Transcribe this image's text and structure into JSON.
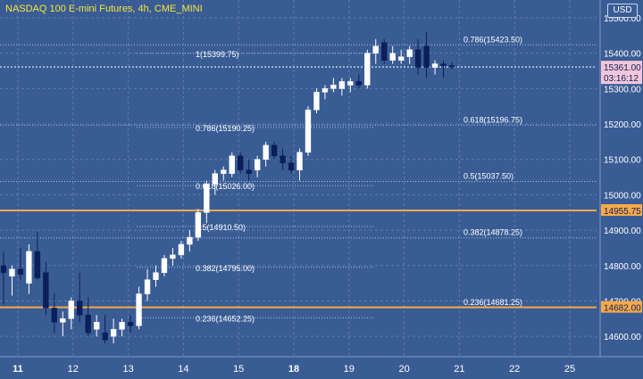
{
  "header": {
    "title": "NASDAQ 100 E-mini Futures, 4h, CME_MINI",
    "currency": "USD"
  },
  "price_labels": {
    "last_price": "15361.00",
    "countdown": "03:16:12",
    "level_upper": "14955.75",
    "level_lower": "14682.00"
  },
  "colors": {
    "background": "#3a5c94",
    "grid": "#5c7cb0",
    "up": "#ffffff",
    "down": "#0b1f5c",
    "orange_line": "#f7a94a",
    "price_label_bg": "#f3c6d9",
    "title": "#f5e63c",
    "text": "#ffffff"
  },
  "chart_data": {
    "type": "candlestick",
    "title": "NASDAQ 100 E-mini Futures, 4h, CME_MINI",
    "y_axis": {
      "range": [
        14550,
        15500
      ],
      "ticks": [
        "14600.00",
        "14700.00",
        "14800.00",
        "14900.00",
        "15000.00",
        "15100.00",
        "15200.00",
        "15300.00",
        "15400.00",
        "15500.00"
      ]
    },
    "x_axis": {
      "labels": [
        "11",
        "12",
        "13",
        "14",
        "15",
        "18",
        "19",
        "20",
        "21",
        "22",
        "25"
      ],
      "bold_labels": [
        "11",
        "18"
      ]
    },
    "candles": [
      {
        "o": 14800,
        "h": 14840,
        "l": 14690,
        "c": 14780
      },
      {
        "o": 14770,
        "h": 14800,
        "l": 14715,
        "c": 14790
      },
      {
        "o": 14790,
        "h": 14850,
        "l": 14760,
        "c": 14775
      },
      {
        "o": 14750,
        "h": 14860,
        "l": 14720,
        "c": 14840
      },
      {
        "o": 14840,
        "h": 14895,
        "l": 14760,
        "c": 14765
      },
      {
        "o": 14780,
        "h": 14810,
        "l": 14660,
        "c": 14680
      },
      {
        "o": 14680,
        "h": 14720,
        "l": 14610,
        "c": 14640
      },
      {
        "o": 14640,
        "h": 14670,
        "l": 14600,
        "c": 14650
      },
      {
        "o": 14650,
        "h": 14710,
        "l": 14620,
        "c": 14700
      },
      {
        "o": 14700,
        "h": 14780,
        "l": 14640,
        "c": 14660
      },
      {
        "o": 14660,
        "h": 14710,
        "l": 14600,
        "c": 14610
      },
      {
        "o": 14620,
        "h": 14660,
        "l": 14600,
        "c": 14640
      },
      {
        "o": 14610,
        "h": 14660,
        "l": 14580,
        "c": 14590
      },
      {
        "o": 14600,
        "h": 14650,
        "l": 14580,
        "c": 14620
      },
      {
        "o": 14620,
        "h": 14650,
        "l": 14600,
        "c": 14640
      },
      {
        "o": 14640,
        "h": 14660,
        "l": 14610,
        "c": 14630
      },
      {
        "o": 14630,
        "h": 14740,
        "l": 14620,
        "c": 14720
      },
      {
        "o": 14720,
        "h": 14790,
        "l": 14700,
        "c": 14760
      },
      {
        "o": 14760,
        "h": 14800,
        "l": 14740,
        "c": 14780
      },
      {
        "o": 14780,
        "h": 14830,
        "l": 14770,
        "c": 14820
      },
      {
        "o": 14820,
        "h": 14850,
        "l": 14800,
        "c": 14830
      },
      {
        "o": 14830,
        "h": 14870,
        "l": 14820,
        "c": 14860
      },
      {
        "o": 14860,
        "h": 14900,
        "l": 14840,
        "c": 14880
      },
      {
        "o": 14880,
        "h": 14960,
        "l": 14870,
        "c": 14950
      },
      {
        "o": 14950,
        "h": 15040,
        "l": 14920,
        "c": 15030
      },
      {
        "o": 15030,
        "h": 15070,
        "l": 15000,
        "c": 15060
      },
      {
        "o": 15060,
        "h": 15080,
        "l": 15040,
        "c": 15070
      },
      {
        "o": 15060,
        "h": 15120,
        "l": 15050,
        "c": 15110
      },
      {
        "o": 15110,
        "h": 15120,
        "l": 15060,
        "c": 15070
      },
      {
        "o": 15070,
        "h": 15100,
        "l": 15040,
        "c": 15060
      },
      {
        "o": 15070,
        "h": 15110,
        "l": 15050,
        "c": 15100
      },
      {
        "o": 15100,
        "h": 15150,
        "l": 15080,
        "c": 15140
      },
      {
        "o": 15140,
        "h": 15150,
        "l": 15100,
        "c": 15110
      },
      {
        "o": 15110,
        "h": 15130,
        "l": 15070,
        "c": 15090
      },
      {
        "o": 15090,
        "h": 15110,
        "l": 15060,
        "c": 15070
      },
      {
        "o": 15070,
        "h": 15130,
        "l": 15040,
        "c": 15120
      },
      {
        "o": 15120,
        "h": 15250,
        "l": 15110,
        "c": 15240
      },
      {
        "o": 15240,
        "h": 15300,
        "l": 15230,
        "c": 15290
      },
      {
        "o": 15290,
        "h": 15310,
        "l": 15270,
        "c": 15300
      },
      {
        "o": 15300,
        "h": 15330,
        "l": 15290,
        "c": 15310
      },
      {
        "o": 15300,
        "h": 15330,
        "l": 15280,
        "c": 15320
      },
      {
        "o": 15310,
        "h": 15330,
        "l": 15290,
        "c": 15320
      },
      {
        "o": 15320,
        "h": 15340,
        "l": 15300,
        "c": 15310
      },
      {
        "o": 15310,
        "h": 15410,
        "l": 15300,
        "c": 15400
      },
      {
        "o": 15400,
        "h": 15440,
        "l": 15370,
        "c": 15420
      },
      {
        "o": 15430,
        "h": 15440,
        "l": 15370,
        "c": 15380
      },
      {
        "o": 15380,
        "h": 15420,
        "l": 15370,
        "c": 15400
      },
      {
        "o": 15380,
        "h": 15410,
        "l": 15370,
        "c": 15390
      },
      {
        "o": 15390,
        "h": 15420,
        "l": 15370,
        "c": 15410
      },
      {
        "o": 15410,
        "h": 15440,
        "l": 15340,
        "c": 15360
      },
      {
        "o": 15420,
        "h": 15460,
        "l": 15330,
        "c": 15360
      },
      {
        "o": 15360,
        "h": 15380,
        "l": 15340,
        "c": 15370
      },
      {
        "o": 15370,
        "h": 15380,
        "l": 15330,
        "c": 15365
      },
      {
        "o": 15365,
        "h": 15375,
        "l": 15355,
        "c": 15361
      }
    ],
    "horizontal_lines": [
      {
        "price": 14955.75,
        "style": "solid"
      },
      {
        "price": 14682.0,
        "style": "solid"
      },
      {
        "price": 15361.0,
        "style": "dotted"
      }
    ],
    "fib_levels": [
      {
        "label": "0.786(15423.50)",
        "price": 15423.5,
        "set": "right"
      },
      {
        "label": "0.618(15196.75)",
        "price": 15196.75,
        "set": "right"
      },
      {
        "label": "0.5(15037.50)",
        "price": 15037.5,
        "set": "right"
      },
      {
        "label": "0.382(14878.25)",
        "price": 14878.25,
        "set": "right"
      },
      {
        "label": "0.236(14681.25)",
        "price": 14681.25,
        "set": "right"
      },
      {
        "label": "1(15399.75)",
        "price": 15399.75,
        "set": "left"
      },
      {
        "label": "0.786(15190.25)",
        "price": 15190.25,
        "set": "left"
      },
      {
        "label": "0.618(15026.00)",
        "price": 15026.0,
        "set": "left"
      },
      {
        "label": "0.5(14910.50)",
        "price": 14910.5,
        "set": "left"
      },
      {
        "label": "0.382(14795.00)",
        "price": 14795.0,
        "set": "left"
      },
      {
        "label": "0.236(14652.25)",
        "price": 14652.25,
        "set": "left"
      }
    ]
  }
}
